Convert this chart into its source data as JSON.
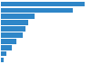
{
  "values": [
    3200,
    2750,
    1300,
    1050,
    950,
    850,
    580,
    400,
    200,
    110
  ],
  "bar_color": "#2e86c8",
  "background_color": "#ffffff",
  "grid_color": "#d0d0d0",
  "xlim": [
    0,
    3400
  ],
  "num_bars": 10
}
